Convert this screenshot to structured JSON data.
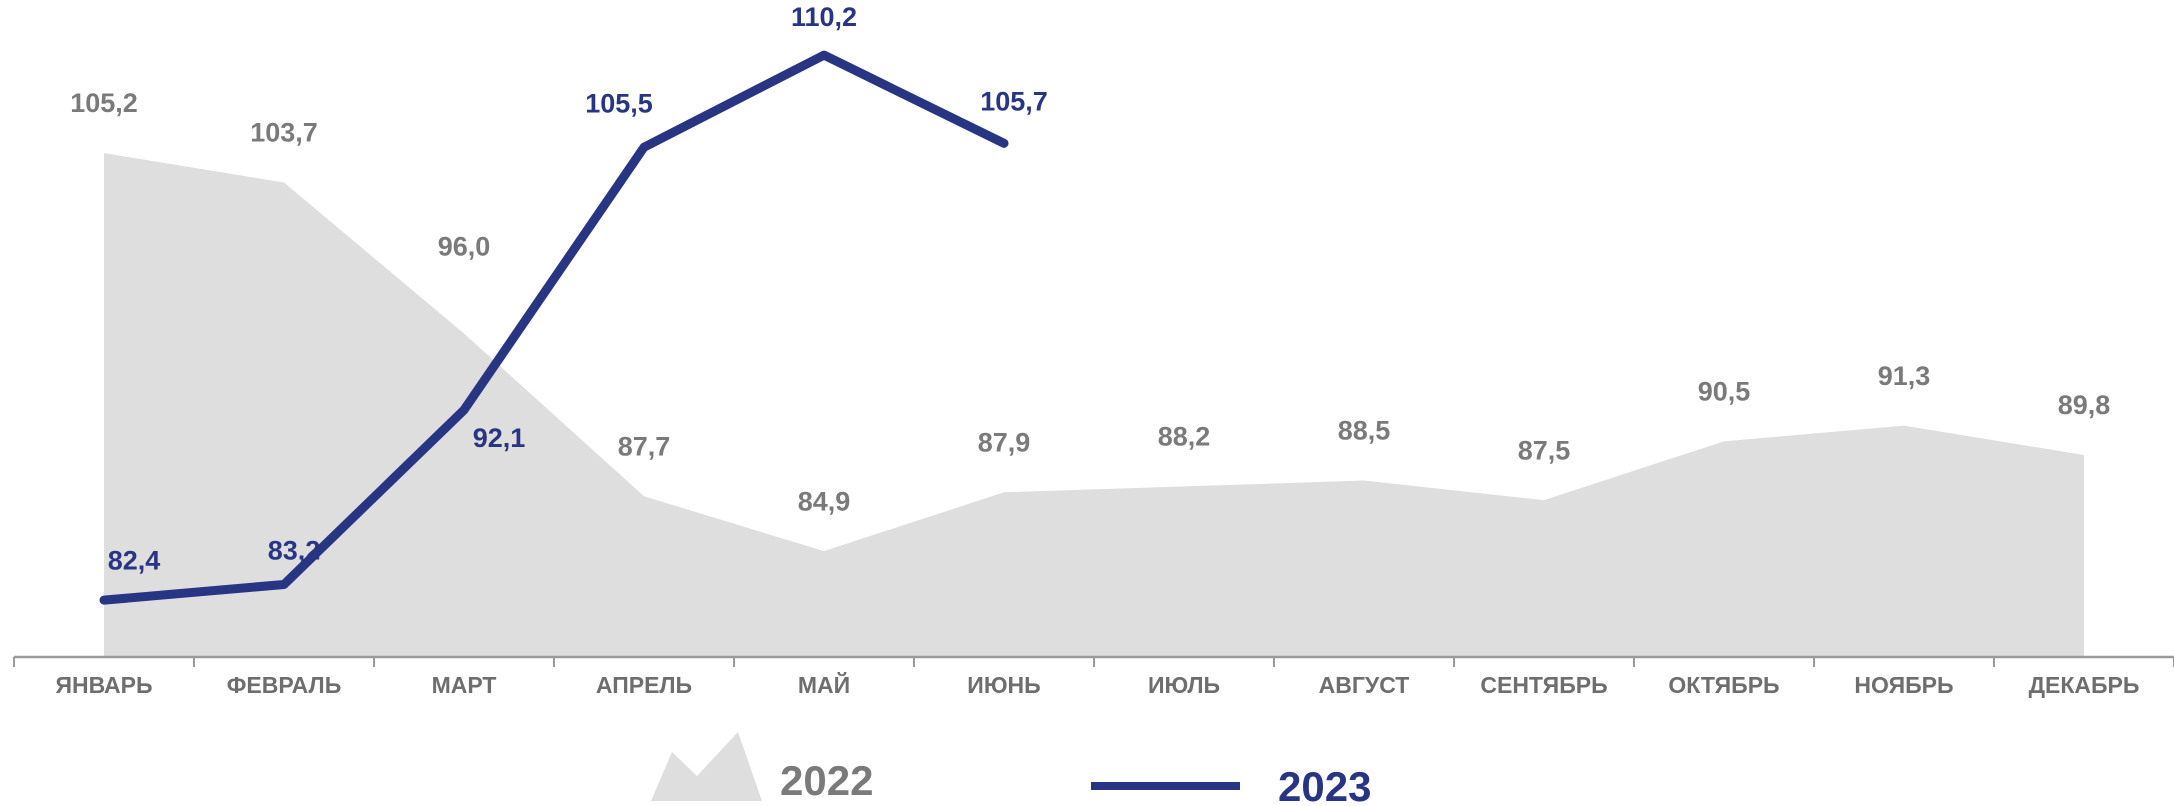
{
  "chart_data": {
    "type": "line",
    "categories": [
      "ЯНВАРЬ",
      "ФЕВРАЛЬ",
      "МАРТ",
      "АПРЕЛЬ",
      "МАЙ",
      "ИЮНЬ",
      "ИЮЛЬ",
      "АВГУСТ",
      "СЕНТЯБРЬ",
      "ОКТЯБРЬ",
      "НОЯБРЬ",
      "ДЕКАБРЬ"
    ],
    "series": [
      {
        "name": "2022",
        "style": "area",
        "color": "#dedede",
        "label_color": "#7a7a7a",
        "values": [
          105.2,
          103.7,
          96.0,
          87.7,
          84.9,
          87.9,
          88.2,
          88.5,
          87.5,
          90.5,
          91.3,
          89.8
        ],
        "value_labels": [
          "105,2",
          "103,7",
          "96,0",
          "87,7",
          "84,9",
          "87,9",
          "88,2",
          "88,5",
          "87,5",
          "90,5",
          "91,3",
          "89,8"
        ]
      },
      {
        "name": "2023",
        "style": "line",
        "color": "#283583",
        "label_color": "#283583",
        "values": [
          82.4,
          83.2,
          92.1,
          105.5,
          110.2,
          105.7,
          null,
          null,
          null,
          null,
          null,
          null
        ],
        "value_labels": [
          "82,4",
          "83,2",
          "92,1",
          "105,5",
          "110,2",
          "105,7",
          null,
          null,
          null,
          null,
          null,
          null
        ]
      }
    ],
    "ylim": [
      79.5,
      112.5
    ]
  }
}
